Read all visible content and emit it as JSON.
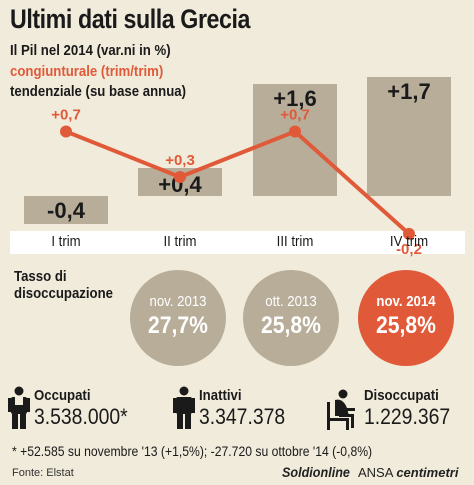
{
  "title": "Ultimi dati sulla Grecia",
  "subtitle": "Il Pil nel 2014 (var.ni in %)",
  "legend": {
    "congiunturale": "congiunturale (trim/trim)",
    "tendenziale": "tendenziale (su base annua)"
  },
  "colors": {
    "background": "#f1ebdb",
    "bar": "#b8ad99",
    "line": "#e05a3a",
    "highlight": "#e05a3a"
  },
  "chart_data": {
    "type": "bar",
    "categories": [
      "I trim",
      "II trim",
      "III trim",
      "IV trim"
    ],
    "series": [
      {
        "type": "bar",
        "values": [
          -0.4,
          0.4,
          1.6,
          1.7
        ],
        "labels": [
          "-0,4",
          "+0,4",
          "+1,6",
          "+1,7"
        ]
      },
      {
        "type": "line",
        "values": [
          0.7,
          0.3,
          0.7,
          -0.2
        ],
        "labels": [
          "+0,7",
          "+0,3",
          "+0,7",
          "-0,2"
        ]
      }
    ]
  },
  "unemployment": {
    "title_line1": "Tasso di",
    "title_line2": "disoccupazione",
    "items": [
      {
        "label": "nov. 2013",
        "value": "27,7%"
      },
      {
        "label": "ott. 2013",
        "value": "25,8%"
      },
      {
        "label": "nov. 2014",
        "value": "25,8%"
      }
    ]
  },
  "stats": [
    {
      "label": "Occupati",
      "value": "3.538.000*",
      "icon": "worker-icon"
    },
    {
      "label": "Inattivi",
      "value": "3.347.378",
      "icon": "person-icon"
    },
    {
      "label": "Disoccupati",
      "value": "1.229.367",
      "icon": "seated-person-icon"
    }
  ],
  "footnote": "* +52.585 su novembre '13 (+1,5%); -27.720 su ottobre '14 (-0,8%)",
  "source": "Fonte: Elstat",
  "logos": {
    "soldionline": "Soldionline",
    "ansa": "ANSA",
    "centimetri": "centimetri"
  }
}
